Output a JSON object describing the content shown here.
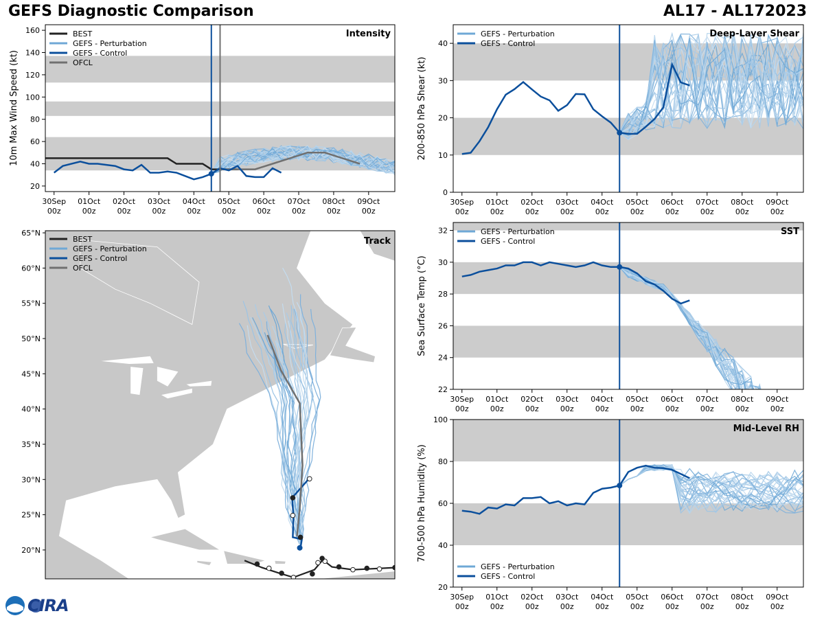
{
  "header": {
    "title": "GEFS Diagnostic Comparison",
    "storm": "AL17 - AL172023"
  },
  "logo": {
    "text": "CIRA"
  },
  "colors": {
    "best": "#222222",
    "pert": "#6fa8d6",
    "control": "#0b4f9c",
    "ofcl": "#707070",
    "band": "#cccccc",
    "land": "#c8c8c8"
  },
  "time_axis": {
    "ticks": [
      "30Sep",
      "01Oct",
      "02Oct",
      "03Oct",
      "04Oct",
      "05Oct",
      "06Oct",
      "07Oct",
      "08Oct",
      "09Oct"
    ],
    "sub": "00z",
    "init_day": 4.5
  },
  "chart_data": [
    {
      "id": "intensity",
      "type": "line",
      "title": "Intensity",
      "ylabel": "10m Max Wind Speed (kt)",
      "xlim": [
        -0.25,
        9.75
      ],
      "ylim": [
        15,
        165
      ],
      "yticks": [
        20,
        40,
        60,
        80,
        100,
        120,
        140,
        160
      ],
      "bands": [
        [
          34,
          64
        ],
        [
          83,
          96
        ],
        [
          113,
          137
        ]
      ],
      "legend": [
        "BEST",
        "GEFS - Perturbation",
        "GEFS - Control",
        "OFCL"
      ],
      "vline_ofcl": 4.75,
      "series": [
        {
          "name": "BEST",
          "x": [
            -0.25,
            0,
            0.5,
            1,
            1.5,
            2,
            2.5,
            3,
            3.25,
            3.5,
            4,
            4.25,
            4.5,
            4.75,
            5,
            5.25
          ],
          "y": [
            45,
            45,
            45,
            45,
            45,
            45,
            45,
            45,
            45,
            40,
            40,
            40,
            35,
            35,
            35,
            35
          ]
        },
        {
          "name": "OFCL",
          "x": [
            4.75,
            5.25,
            5.75,
            6.25,
            6.75,
            7.25,
            7.75,
            8.25,
            8.75
          ],
          "y": [
            35,
            35,
            35,
            40,
            45,
            50,
            50,
            45,
            40
          ]
        },
        {
          "name": "GEFS - Control",
          "x": [
            0,
            0.25,
            0.75,
            1,
            1.25,
            1.5,
            1.75,
            2,
            2.25,
            2.5,
            2.75,
            3,
            3.25,
            3.5,
            3.75,
            4,
            4.25,
            4.5,
            4.75,
            5,
            5.25,
            5.5,
            5.75,
            6,
            6.25,
            6.5
          ],
          "y": [
            32,
            38,
            42,
            40,
            40,
            39,
            38,
            35,
            34,
            39,
            32,
            32,
            33,
            32,
            29,
            26,
            28,
            31,
            36,
            34,
            38,
            29,
            28,
            28,
            36,
            32
          ]
        }
      ]
    },
    {
      "id": "shear",
      "type": "line",
      "title": "Deep-Layer Shear",
      "ylabel": "200-850 hPa Shear (kt)",
      "xlim": [
        -0.25,
        9.75
      ],
      "ylim": [
        0,
        45
      ],
      "yticks": [
        0,
        10,
        20,
        30,
        40
      ],
      "bands": [
        [
          10,
          20
        ],
        [
          30,
          40
        ]
      ],
      "legend": [
        "GEFS - Perturbation",
        "GEFS - Control"
      ],
      "series": [
        {
          "name": "GEFS - Control",
          "x": [
            0,
            0.25,
            0.5,
            0.75,
            1,
            1.25,
            1.5,
            1.75,
            2,
            2.25,
            2.5,
            2.75,
            3,
            3.25,
            3.5,
            3.75,
            4,
            4.25,
            4.5,
            4.75,
            5,
            5.25,
            5.5,
            5.75,
            6,
            6.25,
            6.5
          ],
          "y": [
            10.3,
            10.6,
            13.7,
            17.5,
            22.3,
            26.2,
            27.7,
            29.6,
            27.6,
            25.7,
            24.7,
            21.9,
            23.4,
            26.4,
            26.3,
            22.3,
            20.4,
            18.7,
            16,
            15.7,
            15.7,
            17.6,
            19.7,
            22.8,
            34.3,
            29.5,
            28.7
          ]
        }
      ]
    },
    {
      "id": "sst",
      "type": "line",
      "title": "SST",
      "ylabel": "Sea Surface Temp (°C)",
      "xlim": [
        -0.25,
        9.75
      ],
      "ylim": [
        22,
        32.5
      ],
      "yticks": [
        22,
        24,
        26,
        28,
        30,
        32
      ],
      "bands": [
        [
          24,
          26
        ],
        [
          28,
          30
        ],
        [
          32,
          33
        ]
      ],
      "legend": [
        "GEFS - Perturbation",
        "GEFS - Control"
      ],
      "series": [
        {
          "name": "GEFS - Control",
          "x": [
            0,
            0.25,
            0.5,
            0.75,
            1,
            1.25,
            1.5,
            1.75,
            2,
            2.25,
            2.5,
            2.75,
            3,
            3.25,
            3.5,
            3.75,
            4,
            4.25,
            4.5,
            4.75,
            5,
            5.25,
            5.5,
            5.75,
            6,
            6.25,
            6.5
          ],
          "y": [
            29.1,
            29.2,
            29.4,
            29.5,
            29.6,
            29.8,
            29.8,
            30.0,
            30.0,
            29.8,
            30.0,
            29.9,
            29.8,
            29.7,
            29.8,
            30.0,
            29.8,
            29.7,
            29.7,
            29.6,
            29.3,
            28.8,
            28.6,
            28.2,
            27.7,
            27.4,
            27.6
          ]
        }
      ]
    },
    {
      "id": "rh",
      "type": "line",
      "title": "Mid-Level RH",
      "ylabel": "700-500 hPa Humidity (%)",
      "xlim": [
        -0.25,
        9.75
      ],
      "ylim": [
        20,
        100
      ],
      "yticks": [
        20,
        40,
        60,
        80,
        100
      ],
      "bands": [
        [
          40,
          60
        ],
        [
          80,
          100
        ]
      ],
      "legend": [
        "GEFS - Perturbation",
        "GEFS - Control"
      ],
      "series": [
        {
          "name": "GEFS - Control",
          "x": [
            0,
            0.25,
            0.5,
            0.75,
            1,
            1.25,
            1.5,
            1.75,
            2,
            2.25,
            2.5,
            2.75,
            3,
            3.25,
            3.5,
            3.75,
            4,
            4.25,
            4.5,
            4.75,
            5,
            5.25,
            5.5,
            5.75,
            6,
            6.25,
            6.5
          ],
          "y": [
            56.5,
            56,
            55,
            58,
            57.5,
            59.5,
            59,
            62.5,
            62.5,
            63,
            60,
            61,
            59,
            60,
            59.5,
            65,
            67,
            67.5,
            68.5,
            75,
            77,
            78,
            77,
            76.8,
            76,
            74,
            72
          ]
        }
      ]
    }
  ],
  "track": {
    "title": "Track",
    "legend": [
      "BEST",
      "GEFS - Perturbation",
      "GEFS - Control",
      "OFCL"
    ],
    "lat_ticks": [
      "65°N",
      "60°N",
      "55°N",
      "50°N",
      "45°N",
      "40°N",
      "35°N",
      "30°N",
      "25°N",
      "20°N"
    ]
  }
}
